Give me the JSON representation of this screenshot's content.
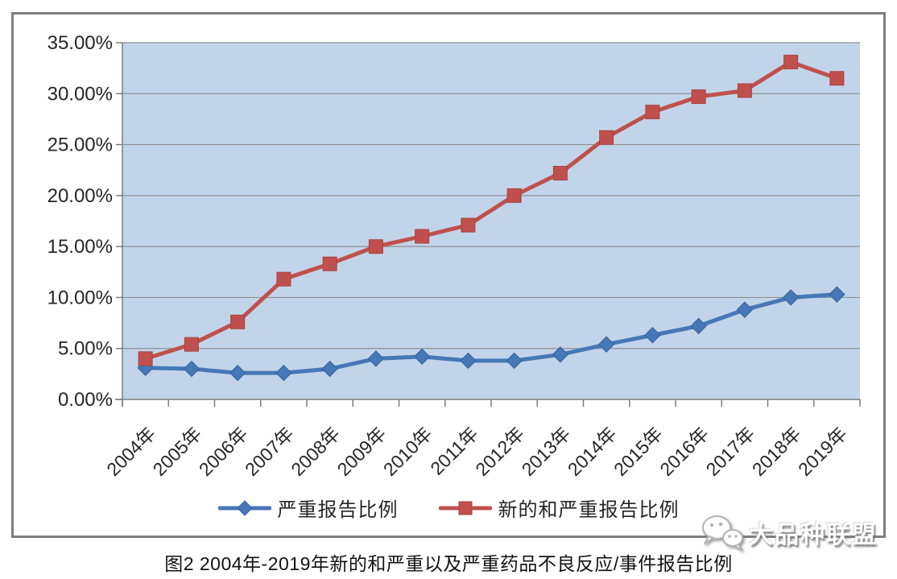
{
  "page": {
    "caption": "图2 2004年-2019年新的和严重以及严重药品不良反应/事件报告比例",
    "watermark": {
      "icon": "wechat-icon",
      "text": "大品种联盟"
    }
  },
  "chart_data": {
    "type": "line",
    "title": "",
    "xlabel": "",
    "ylabel": "",
    "categories": [
      "2004年",
      "2005年",
      "2006年",
      "2007年",
      "2008年",
      "2009年",
      "2010年",
      "2011年",
      "2012年",
      "2013年",
      "2014年",
      "2015年",
      "2016年",
      "2017年",
      "2018年",
      "2019年"
    ],
    "series": [
      {
        "name": "严重报告比例",
        "marker": "diamond",
        "color": "#4677b7",
        "marker_edge": "#38639c",
        "values": [
          3.1,
          3.0,
          2.6,
          2.6,
          3.0,
          4.0,
          4.2,
          3.8,
          3.8,
          4.4,
          5.4,
          6.3,
          7.2,
          8.8,
          10.0,
          10.3
        ]
      },
      {
        "name": "新的和严重报告比例",
        "marker": "square",
        "color": "#c0504d",
        "marker_edge": "#a8433e",
        "values": [
          4.0,
          5.4,
          7.6,
          11.8,
          13.3,
          15.0,
          16.0,
          17.1,
          20.0,
          22.2,
          25.7,
          28.2,
          29.7,
          30.3,
          33.1,
          31.5
        ]
      }
    ],
    "ylim": [
      0,
      35
    ],
    "ytick_step": 5,
    "ytick_labels": [
      "0.00%",
      "5.00%",
      "10.00%",
      "15.00%",
      "20.00%",
      "25.00%",
      "30.00%",
      "35.00%"
    ],
    "grid": true,
    "legend_position": "bottom-inside",
    "plot_bg": "#c2d4ea",
    "grid_color": "#919191",
    "axis_color": "#7d7d7d",
    "tick_label_color": "#262626"
  }
}
